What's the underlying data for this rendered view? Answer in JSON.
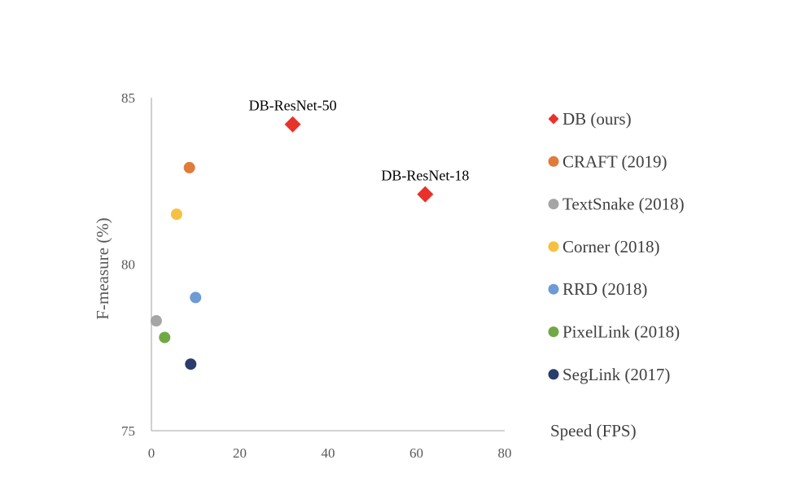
{
  "chart_data": {
    "type": "scatter",
    "xlabel": "Speed (FPS)",
    "ylabel": "F-measure (%)",
    "xlim": [
      0,
      80
    ],
    "ylim": [
      75,
      85
    ],
    "x_ticks": [
      "0",
      "20",
      "40",
      "60",
      "80"
    ],
    "y_ticks": [
      "75",
      "80",
      "85"
    ],
    "grid": false,
    "legend_position": "right",
    "series": [
      {
        "name": "DB (ours)",
        "color": "#e8312a",
        "marker": "diamond",
        "points": [
          {
            "x": 32,
            "y": 84.2
          },
          {
            "x": 62,
            "y": 82.1
          }
        ]
      },
      {
        "name": "CRAFT (2019)",
        "color": "#e07b39",
        "marker": "circle",
        "points": [
          {
            "x": 8.6,
            "y": 82.9
          }
        ]
      },
      {
        "name": "TextSnake (2018)",
        "color": "#a5a5a5",
        "marker": "circle",
        "points": [
          {
            "x": 1.1,
            "y": 78.3
          }
        ]
      },
      {
        "name": "Corner (2018)",
        "color": "#f6c142",
        "marker": "circle",
        "points": [
          {
            "x": 5.7,
            "y": 81.5
          }
        ]
      },
      {
        "name": "RRD (2018)",
        "color": "#6d9bd3",
        "marker": "circle",
        "points": [
          {
            "x": 10,
            "y": 79
          }
        ]
      },
      {
        "name": "PixelLink (2018)",
        "color": "#70a845",
        "marker": "circle",
        "points": [
          {
            "x": 3,
            "y": 77.8
          }
        ]
      },
      {
        "name": "SegLink (2017)",
        "color": "#2a3d6b",
        "marker": "circle",
        "points": [
          {
            "x": 8.9,
            "y": 77
          }
        ]
      }
    ],
    "annotations": [
      {
        "text": "DB-ResNet-50",
        "x": 32,
        "y": 84.2
      },
      {
        "text": "DB-ResNet-18",
        "x": 62,
        "y": 82.1
      }
    ]
  }
}
